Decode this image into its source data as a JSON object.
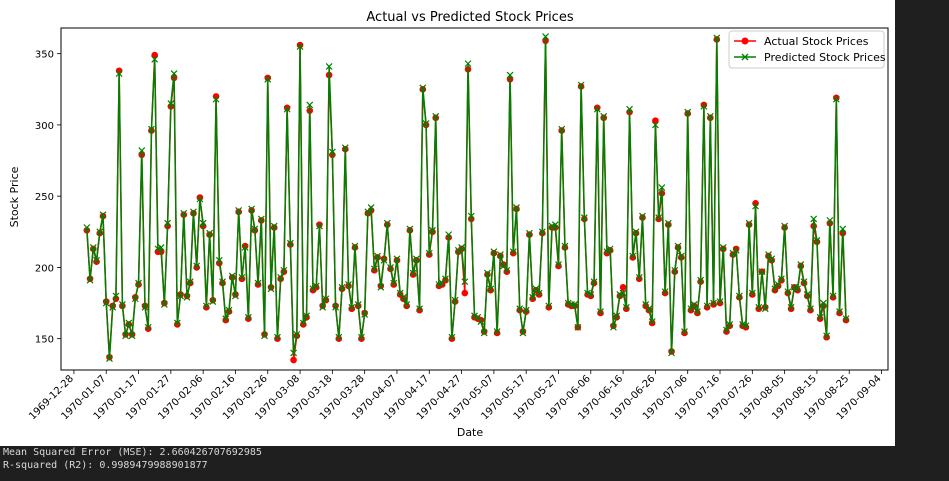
{
  "chart_data": {
    "type": "line",
    "title": "Actual vs Predicted Stock Prices",
    "xlabel": "Date",
    "ylabel": "Stock Price",
    "x_start": "1970-01-01",
    "x_ticks": [
      "1969-12-28",
      "1970-01-07",
      "1970-01-17",
      "1970-01-27",
      "1970-02-06",
      "1970-02-16",
      "1970-02-26",
      "1970-03-08",
      "1970-03-18",
      "1970-03-28",
      "1970-04-07",
      "1970-04-17",
      "1970-04-27",
      "1970-05-07",
      "1970-05-17",
      "1970-05-27",
      "1970-06-06",
      "1970-06-16",
      "1970-06-26",
      "1970-07-06",
      "1970-07-16",
      "1970-07-26",
      "1970-08-05",
      "1970-08-15",
      "1970-08-25",
      "1970-09-04"
    ],
    "y_ticks": [
      150,
      200,
      250,
      300,
      350
    ],
    "xlim": [
      "1969-12-24",
      "1970-09-06"
    ],
    "ylim": [
      128,
      368
    ],
    "grid": false,
    "legend_position": "top-right",
    "series": [
      {
        "name": "Actual Stock Prices",
        "color": "#ff0000",
        "marker": "circle",
        "values": [
          226,
          192,
          213,
          204,
          224,
          236,
          176,
          137,
          173,
          178,
          338,
          173,
          153,
          160,
          153,
          179,
          188,
          279,
          173,
          157,
          296,
          349,
          211,
          211,
          175,
          229,
          313,
          333,
          160,
          181,
          237,
          180,
          189,
          238,
          200,
          249,
          229,
          172,
          223,
          177,
          320,
          203,
          189,
          163,
          169,
          193,
          181,
          239,
          192,
          215,
          164,
          240,
          226,
          188,
          233,
          153,
          333,
          186,
          228,
          150,
          192,
          197,
          312,
          216,
          135,
          152,
          356,
          160,
          165,
          310,
          184,
          186,
          230,
          173,
          177,
          335,
          279,
          173,
          150,
          185,
          283,
          187,
          171,
          214,
          173,
          150,
          168,
          238,
          240,
          198,
          207,
          187,
          206,
          230,
          199,
          188,
          205,
          181,
          178,
          173,
          226,
          195,
          205,
          170,
          325,
          300,
          209,
          225,
          305,
          187,
          188,
          191,
          221,
          150,
          176,
          211,
          213,
          182,
          339,
          234,
          165,
          164,
          163,
          155,
          195,
          184,
          210,
          154,
          208,
          202,
          197,
          332,
          210,
          241,
          170,
          155,
          169,
          223,
          178,
          184,
          181,
          224,
          359,
          172,
          228,
          228,
          201,
          296,
          214,
          174,
          173,
          173,
          158,
          327,
          234,
          181,
          180,
          189,
          312,
          168,
          305,
          210,
          212,
          159,
          165,
          180,
          186,
          171,
          309,
          207,
          224,
          192,
          235,
          173,
          170,
          161,
          303,
          234,
          252,
          182,
          230,
          141,
          197,
          214,
          207,
          154,
          308,
          170,
          173,
          168,
          190,
          314,
          172,
          305,
          174,
          360,
          175,
          213,
          155,
          159,
          209,
          213,
          179,
          159,
          158,
          230,
          181,
          245,
          171,
          197,
          172,
          208,
          205,
          184,
          187,
          191,
          228,
          182,
          171,
          186,
          184,
          201,
          189,
          180,
          170,
          229,
          218,
          164,
          173,
          151,
          231,
          179,
          319,
          168,
          224,
          163
        ]
      },
      {
        "name": "Predicted Stock Prices",
        "color": "#008000",
        "marker": "x",
        "values": [
          228,
          191,
          214,
          205,
          225,
          237,
          175,
          136,
          172,
          180,
          336,
          174,
          152,
          161,
          152,
          178,
          189,
          282,
          172,
          158,
          297,
          346,
          213,
          214,
          174,
          231,
          315,
          336,
          161,
          180,
          238,
          179,
          190,
          239,
          201,
          248,
          231,
          173,
          224,
          176,
          318,
          205,
          190,
          164,
          170,
          194,
          180,
          240,
          193,
          214,
          165,
          241,
          227,
          189,
          234,
          152,
          332,
          185,
          229,
          151,
          193,
          198,
          311,
          217,
          140,
          153,
          355,
          161,
          166,
          314,
          185,
          187,
          229,
          172,
          178,
          341,
          281,
          172,
          151,
          186,
          284,
          188,
          172,
          215,
          174,
          151,
          167,
          239,
          242,
          199,
          208,
          186,
          205,
          231,
          200,
          189,
          206,
          182,
          179,
          174,
          227,
          196,
          206,
          171,
          326,
          301,
          210,
          226,
          306,
          188,
          189,
          192,
          223,
          151,
          177,
          212,
          214,
          190,
          343,
          236,
          166,
          165,
          162,
          154,
          196,
          185,
          211,
          155,
          209,
          201,
          198,
          335,
          211,
          242,
          171,
          154,
          170,
          224,
          179,
          185,
          182,
          225,
          362,
          173,
          229,
          230,
          202,
          297,
          215,
          175,
          174,
          174,
          158,
          328,
          235,
          182,
          181,
          190,
          311,
          169,
          306,
          211,
          213,
          158,
          166,
          181,
          182,
          172,
          311,
          208,
          225,
          193,
          236,
          174,
          171,
          162,
          300,
          235,
          256,
          183,
          231,
          140,
          198,
          215,
          208,
          155,
          309,
          171,
          174,
          169,
          191,
          313,
          173,
          306,
          175,
          361,
          176,
          214,
          156,
          160,
          210,
          212,
          180,
          160,
          159,
          231,
          182,
          243,
          172,
          197,
          171,
          209,
          206,
          185,
          188,
          192,
          229,
          183,
          172,
          186,
          185,
          202,
          190,
          181,
          171,
          234,
          219,
          165,
          175,
          152,
          233,
          180,
          318,
          169,
          227,
          164
        ]
      }
    ]
  },
  "output_lines": [
    "Mean Squared Error (MSE): 2.660426707692985",
    "R-squared (R2): 0.9989479988901877"
  ]
}
